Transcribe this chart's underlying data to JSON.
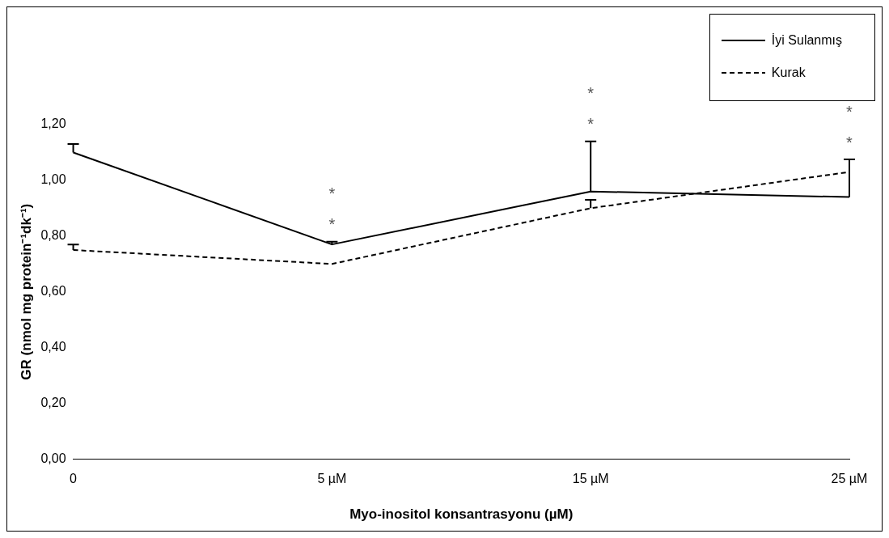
{
  "chart_data": {
    "type": "line",
    "xlabel": "Myo-inositol konsantrasyonu (µM)",
    "ylabel": "GR (nmol mg protein⁻¹dk⁻¹)",
    "categories": [
      "0",
      "5 µM",
      "15 µM",
      "25 µM"
    ],
    "series": [
      {
        "name": "İyi Sulanmış",
        "color": "#000000",
        "line_style": "solid",
        "values": [
          1.1,
          0.77,
          0.96,
          0.94
        ],
        "errors": [
          [
            1.1,
            1.13
          ],
          [
            0.77,
            0.78
          ],
          [
            0.96,
            1.14
          ],
          [
            0.94,
            1.075
          ]
        ]
      },
      {
        "name": "Kurak",
        "color": "#000000",
        "line_style": "dashed",
        "values": [
          0.75,
          0.7,
          0.9,
          1.03
        ],
        "errors": [
          [
            0.75,
            0.77
          ],
          null,
          [
            0.9,
            0.93
          ],
          null
        ]
      }
    ],
    "ylim": [
      0,
      1.2
    ],
    "yticks": [
      {
        "value": 0,
        "label": "0,00"
      },
      {
        "value": 0.2,
        "label": "0,20"
      },
      {
        "value": 0.4,
        "label": "0,40"
      },
      {
        "value": 0.6,
        "label": "0,60"
      },
      {
        "value": 0.8,
        "label": "0,80"
      },
      {
        "value": 1.0,
        "label": "1,00"
      },
      {
        "value": 1.2,
        "label": "1,20"
      }
    ],
    "grid": false,
    "legend": "top right",
    "marker": "none",
    "annotations": [
      "*",
      "*",
      "*",
      "*",
      "*",
      "*"
    ]
  }
}
